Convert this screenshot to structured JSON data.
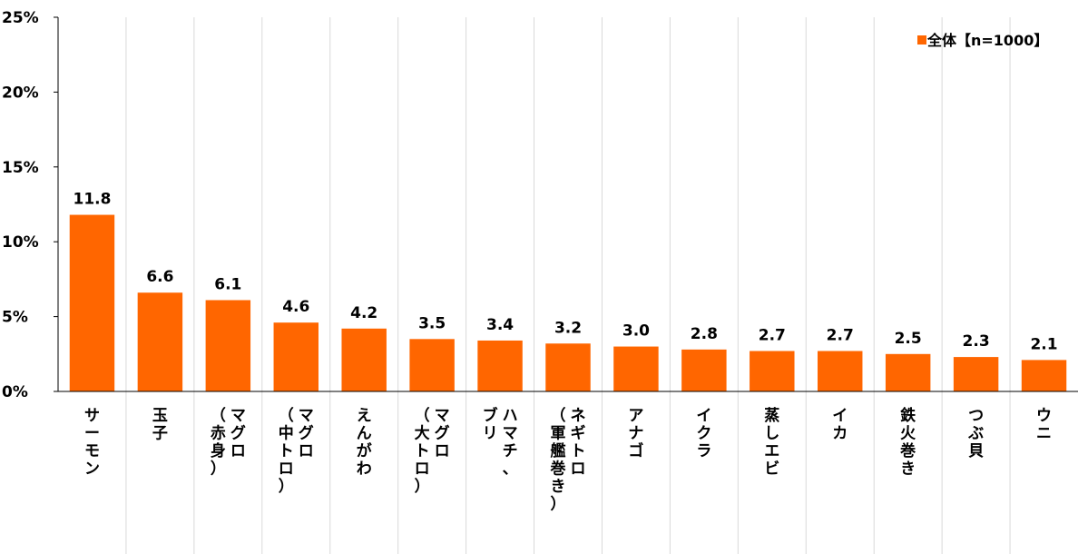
{
  "chart_data": {
    "type": "bar",
    "categories": [
      "サーモン",
      "玉子",
      "マグロ（赤身）",
      "マグロ（中トロ）",
      "えんがわ",
      "マグロ（大トロ）",
      "ハマチ、ブリ",
      "ネギトロ（軍艦巻き）",
      "アナゴ",
      "イクラ",
      "蒸しエビ",
      "イカ",
      "鉄火巻き",
      "つぶ貝",
      "ウニ"
    ],
    "category_columns": [
      [
        "サーモン"
      ],
      [
        "玉子"
      ],
      [
        "マグロ",
        "（赤身）"
      ],
      [
        "マグロ",
        "（中トロ）"
      ],
      [
        "えんがわ"
      ],
      [
        "マグロ",
        "（大トロ）"
      ],
      [
        "ハマチ、",
        "ブリ"
      ],
      [
        "ネギトロ",
        "（軍艦巻き）"
      ],
      [
        "アナゴ"
      ],
      [
        "イクラ"
      ],
      [
        "蒸しエビ"
      ],
      [
        "イカ"
      ],
      [
        "鉄火巻き"
      ],
      [
        "つぶ貝"
      ],
      [
        "ウニ"
      ]
    ],
    "series": [
      {
        "name": "全体【n=1000】",
        "color": "#ff6600",
        "values": [
          11.8,
          6.6,
          6.1,
          4.6,
          4.2,
          3.5,
          3.4,
          3.2,
          3.0,
          2.8,
          2.7,
          2.7,
          2.5,
          2.3,
          2.1
        ],
        "value_labels": [
          "11.8",
          "6.6",
          "6.1",
          "4.6",
          "4.2",
          "3.5",
          "3.4",
          "3.2",
          "3.0",
          "2.8",
          "2.7",
          "2.7",
          "2.5",
          "2.3",
          "2.1"
        ]
      }
    ],
    "ylim": [
      0,
      25
    ],
    "yticks": [
      0,
      5,
      10,
      15,
      20,
      25
    ],
    "ytick_labels": [
      "0%",
      "5%",
      "10%",
      "15%",
      "20%",
      "25%"
    ],
    "grid": "vertical-separators",
    "legend_position": "top-right",
    "title": "",
    "xlabel": "",
    "ylabel": ""
  }
}
